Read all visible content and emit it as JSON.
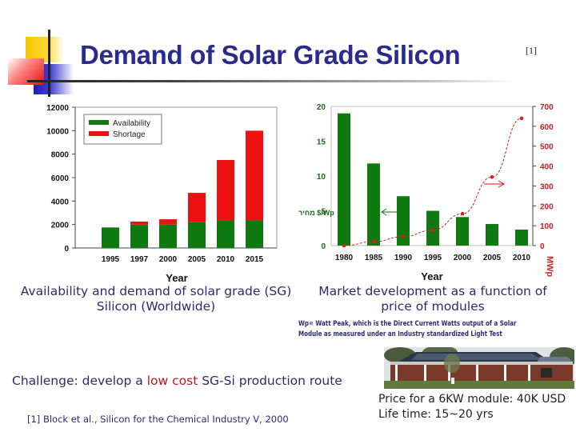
{
  "slide": {
    "title": "Demand of Solar Grade Silicon",
    "title_ref": "[1]",
    "caption_left": [
      "Availability and demand of solar grade (SG)",
      "Silicon (Worldwide)"
    ],
    "caption_right": [
      "Market development as a function of",
      "price of modules"
    ],
    "note": [
      "Wp= Watt Peak, which is the Direct Current Watts output of a Solar",
      "Module as measured under an Industry standardized Light Test"
    ],
    "challenge": {
      "prefix": "Challenge: develop a ",
      "highlight": "low cost",
      "suffix": " SG-Si production route"
    },
    "reference": "[1] Block et al., Silicon for the Chemical Industry V, 2000",
    "price_lines": [
      "Price for a 6KW module: 40K USD",
      "Life time: 15~20 yrs"
    ],
    "photo_alt": "house-with-solar-panels-photo",
    "colors": {
      "title": "#2b2b8c",
      "text": "#2b2b6e",
      "highlight": "#c0141c",
      "bar_green": "#0f7a10",
      "bar_red": "#ee1111",
      "line_red": "#d42020"
    }
  },
  "chart_data": [
    {
      "type": "bar",
      "stacked": true,
      "title": "",
      "xlabel": "Year",
      "ylabel": "",
      "categories": [
        "1995",
        "1997",
        "2000",
        "2005",
        "2010",
        "2015"
      ],
      "series": [
        {
          "name": "Availability",
          "color": "#0f7a10",
          "values": [
            1750,
            2000,
            2000,
            2200,
            2350,
            2350
          ]
        },
        {
          "name": "Shortage",
          "color": "#ee1111",
          "values": [
            0,
            250,
            450,
            2500,
            5150,
            7650
          ]
        }
      ],
      "yticks": [
        "0",
        "2000",
        "4000",
        "6000",
        "8000",
        "10000",
        "12000"
      ],
      "ylim": [
        0,
        12000
      ],
      "legend_position": "upper-left",
      "grid": false
    },
    {
      "type": "bar+line",
      "title": "",
      "xlabel": "Year",
      "categories": [
        "1980",
        "1985",
        "1990",
        "1995",
        "2000",
        "2005",
        "2010"
      ],
      "series": [
        {
          "name": "Module price (left axis)",
          "type": "bar",
          "color": "#0f7a10",
          "axis": "left",
          "values": [
            19,
            11.8,
            7.1,
            5,
            4.1,
            3.1,
            2.3
          ]
        },
        {
          "name": "Market (right axis, MWp)",
          "type": "line",
          "color": "#d42020",
          "axis": "right",
          "values": [
            0,
            20,
            45,
            78,
            160,
            345,
            640
          ]
        }
      ],
      "ylabel_left": "מחיר $/Wp",
      "ylabel_right": "MWp",
      "yticks_left": [
        "0",
        "5",
        "10",
        "15",
        "20"
      ],
      "ylim_left": [
        0,
        20
      ],
      "yticks_right": [
        "0",
        "100",
        "200",
        "300",
        "400",
        "500",
        "600",
        "700"
      ],
      "ylim_right": [
        0,
        700
      ],
      "annotations": [
        "left arrow pointing to bars",
        "right arrow pointing to line"
      ],
      "grid": false
    }
  ]
}
